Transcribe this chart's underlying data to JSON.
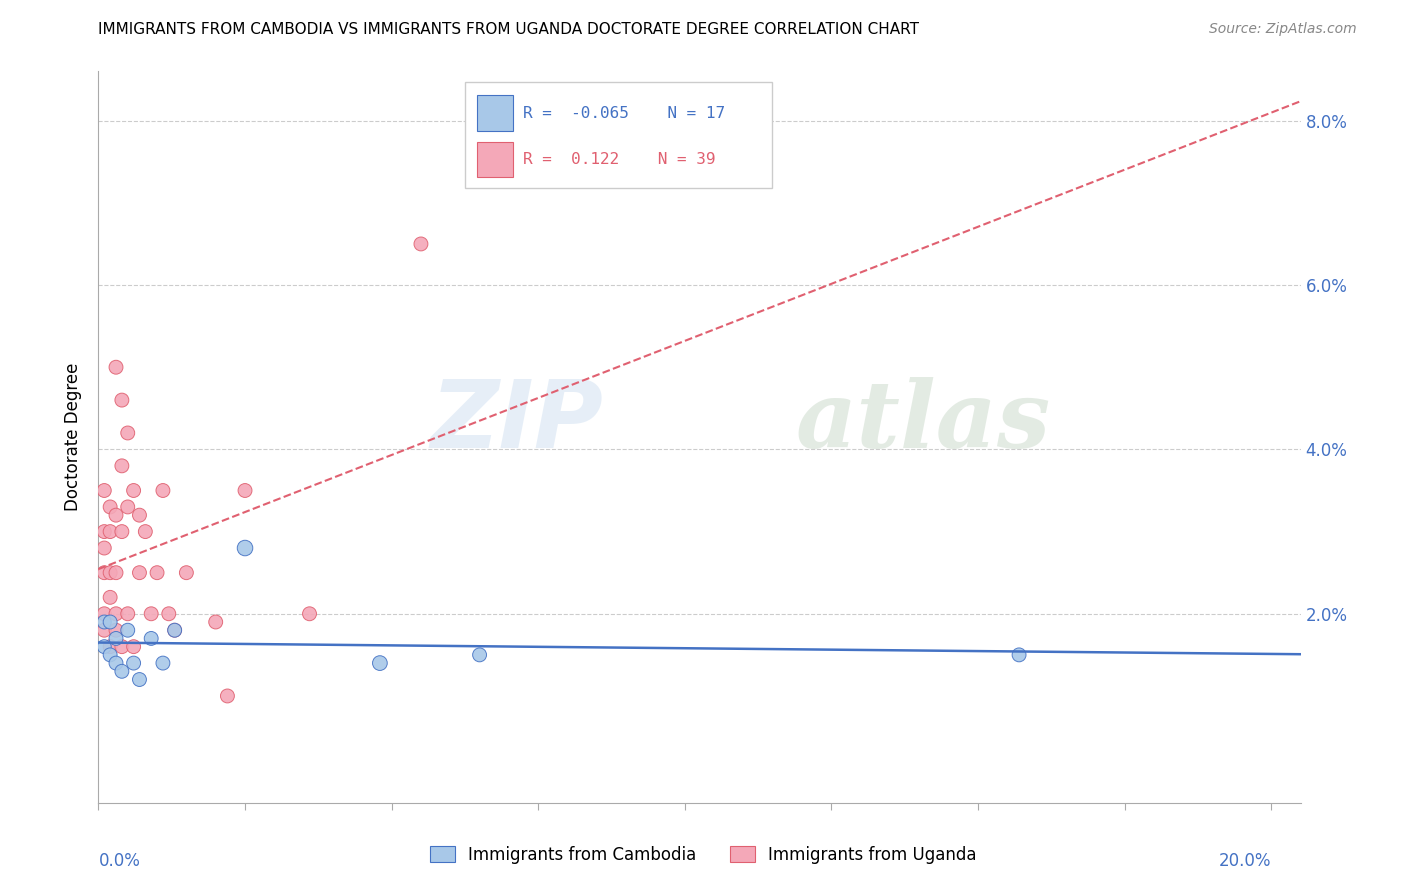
{
  "title": "IMMIGRANTS FROM CAMBODIA VS IMMIGRANTS FROM UGANDA DOCTORATE DEGREE CORRELATION CHART",
  "source": "Source: ZipAtlas.com",
  "ylabel": "Doctorate Degree",
  "y_ticks": [
    0.0,
    0.02,
    0.04,
    0.06,
    0.08
  ],
  "y_tick_labels": [
    "",
    "2.0%",
    "4.0%",
    "6.0%",
    "8.0%"
  ],
  "x_ticks": [
    0.0,
    0.025,
    0.05,
    0.075,
    0.1,
    0.125,
    0.15,
    0.175,
    0.2
  ],
  "xlim": [
    0.0,
    0.205
  ],
  "ylim": [
    -0.003,
    0.086
  ],
  "cambodia_R": -0.065,
  "cambodia_N": 17,
  "uganda_R": 0.122,
  "uganda_N": 39,
  "cambodia_color": "#a8c8e8",
  "uganda_color": "#f4a8b8",
  "cambodia_line_color": "#4472c4",
  "uganda_line_color": "#e06070",
  "watermark_zip": "ZIP",
  "watermark_atlas": "atlas",
  "cambodia_x": [
    0.001,
    0.001,
    0.002,
    0.002,
    0.003,
    0.003,
    0.004,
    0.005,
    0.006,
    0.007,
    0.009,
    0.011,
    0.013,
    0.025,
    0.048,
    0.065,
    0.157
  ],
  "cambodia_y": [
    0.019,
    0.016,
    0.015,
    0.019,
    0.014,
    0.017,
    0.013,
    0.018,
    0.014,
    0.012,
    0.017,
    0.014,
    0.018,
    0.028,
    0.014,
    0.015,
    0.015
  ],
  "cambodia_size": [
    40,
    40,
    40,
    40,
    40,
    40,
    40,
    40,
    40,
    40,
    40,
    40,
    40,
    50,
    45,
    40,
    40
  ],
  "uganda_x": [
    0.001,
    0.001,
    0.001,
    0.001,
    0.001,
    0.001,
    0.002,
    0.002,
    0.002,
    0.002,
    0.002,
    0.003,
    0.003,
    0.003,
    0.003,
    0.003,
    0.004,
    0.004,
    0.004,
    0.004,
    0.005,
    0.005,
    0.005,
    0.006,
    0.006,
    0.007,
    0.007,
    0.008,
    0.009,
    0.01,
    0.011,
    0.012,
    0.013,
    0.015,
    0.02,
    0.022,
    0.025,
    0.036,
    0.055
  ],
  "uganda_y": [
    0.03,
    0.035,
    0.025,
    0.02,
    0.028,
    0.018,
    0.033,
    0.03,
    0.025,
    0.016,
    0.022,
    0.05,
    0.032,
    0.025,
    0.018,
    0.02,
    0.046,
    0.038,
    0.03,
    0.016,
    0.042,
    0.033,
    0.02,
    0.035,
    0.016,
    0.032,
    0.025,
    0.03,
    0.02,
    0.025,
    0.035,
    0.02,
    0.018,
    0.025,
    0.019,
    0.01,
    0.035,
    0.02,
    0.065
  ],
  "uganda_size": [
    40,
    40,
    40,
    40,
    40,
    40,
    40,
    40,
    40,
    40,
    40,
    40,
    40,
    40,
    40,
    40,
    40,
    40,
    40,
    40,
    40,
    40,
    40,
    40,
    40,
    40,
    40,
    40,
    40,
    40,
    40,
    40,
    40,
    40,
    40,
    40,
    40,
    40,
    40
  ]
}
